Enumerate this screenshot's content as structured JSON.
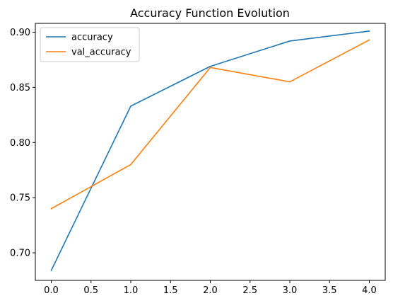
{
  "chart_data": {
    "type": "line",
    "title": "Accuracy Function Evolution",
    "xlabel": "",
    "ylabel": "",
    "x": [
      0,
      1,
      2,
      3,
      4
    ],
    "xlim": [
      -0.2,
      4.2
    ],
    "ylim": [
      0.675,
      0.908
    ],
    "x_ticks": [
      0.0,
      0.5,
      1.0,
      1.5,
      2.0,
      2.5,
      3.0,
      3.5,
      4.0
    ],
    "x_tick_labels": [
      "0.0",
      "0.5",
      "1.0",
      "1.5",
      "2.0",
      "2.5",
      "3.0",
      "3.5",
      "4.0"
    ],
    "y_ticks": [
      0.7,
      0.75,
      0.8,
      0.85,
      0.9
    ],
    "y_tick_labels": [
      "0.70",
      "0.75",
      "0.80",
      "0.85",
      "0.90"
    ],
    "grid": false,
    "legend_position": "top-left",
    "series": [
      {
        "name": "accuracy",
        "color": "#1f77b4",
        "values": [
          0.684,
          0.833,
          0.869,
          0.892,
          0.901
        ]
      },
      {
        "name": "val_accuracy",
        "color": "#ff7f0e",
        "values": [
          0.74,
          0.78,
          0.868,
          0.855,
          0.893
        ]
      }
    ]
  }
}
